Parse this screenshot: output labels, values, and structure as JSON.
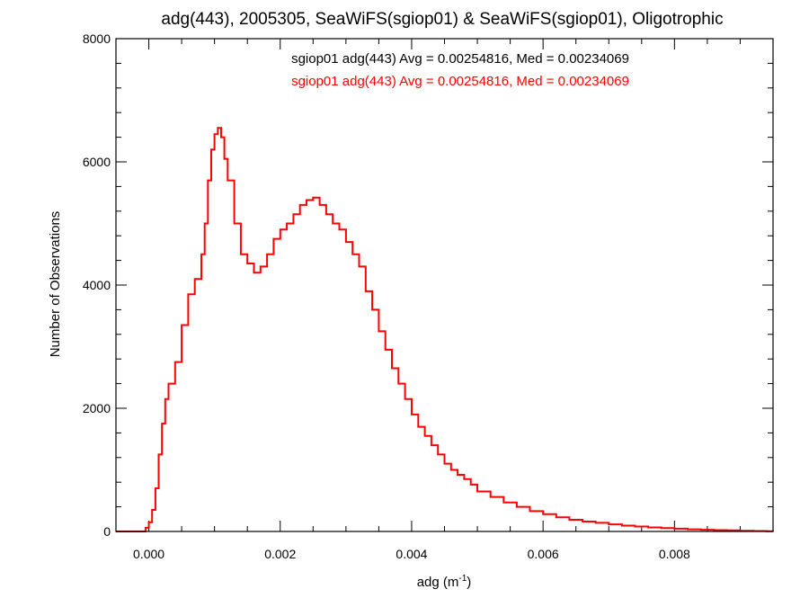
{
  "chart_data": {
    "type": "line",
    "title": "adg(443), 2005305, SeaWiFS(sgiop01) & SeaWiFS(sgiop01), Oligotrophic",
    "xlabel": "adg (m",
    "xlabel_sup": "-1",
    "xlabel_close": ")",
    "ylabel": "Number of Observations",
    "xlim": [
      -0.0005,
      0.0095
    ],
    "ylim": [
      0,
      8000
    ],
    "x_ticks": [
      0.0,
      0.002,
      0.004,
      0.006,
      0.008
    ],
    "x_tick_labels": [
      "0.000",
      "0.002",
      "0.004",
      "0.006",
      "0.008"
    ],
    "y_ticks": [
      0,
      2000,
      4000,
      6000,
      8000
    ],
    "y_tick_labels": [
      "0",
      "2000",
      "4000",
      "6000",
      "8000"
    ],
    "grid": false,
    "annotations": [
      {
        "text": "sgiop01 adg(443) Avg = 0.00254816, Med = 0.00234069",
        "color": "#000000"
      },
      {
        "text": "sgiop01 adg(443) Avg = 0.00254816, Med = 0.00234069",
        "color": "#ff0000"
      }
    ],
    "series": [
      {
        "color": "#ff0000",
        "x": [
          -0.0005,
          -0.0001,
          -5e-05,
          0.0,
          5e-05,
          0.0001,
          0.00015,
          0.0002,
          0.00025,
          0.0003,
          0.0004,
          0.0005,
          0.0006,
          0.0007,
          0.0008,
          0.00085,
          0.0009,
          0.00095,
          0.001,
          0.00105,
          0.0011,
          0.00115,
          0.0012,
          0.0013,
          0.0014,
          0.0015,
          0.0016,
          0.0017,
          0.0018,
          0.0019,
          0.002,
          0.0021,
          0.0022,
          0.0023,
          0.0024,
          0.0025,
          0.0026,
          0.0027,
          0.0028,
          0.0029,
          0.003,
          0.0031,
          0.0032,
          0.0033,
          0.0034,
          0.0035,
          0.0036,
          0.0037,
          0.0038,
          0.0039,
          0.004,
          0.0041,
          0.0042,
          0.0043,
          0.0044,
          0.0045,
          0.0046,
          0.0047,
          0.0048,
          0.0049,
          0.005,
          0.0052,
          0.0054,
          0.0056,
          0.0058,
          0.006,
          0.0062,
          0.0064,
          0.0066,
          0.0068,
          0.007,
          0.0072,
          0.0074,
          0.0076,
          0.0078,
          0.008,
          0.0082,
          0.0084,
          0.0086,
          0.0088,
          0.009,
          0.0092,
          0.0094,
          0.0095
        ],
        "values": [
          0,
          0,
          60,
          150,
          350,
          700,
          1250,
          1750,
          2150,
          2400,
          2750,
          3350,
          3850,
          4100,
          4500,
          5000,
          5700,
          6200,
          6450,
          6550,
          6400,
          6050,
          5700,
          5000,
          4500,
          4350,
          4200,
          4300,
          4500,
          4750,
          4900,
          5000,
          5150,
          5300,
          5380,
          5420,
          5300,
          5150,
          5000,
          4900,
          4700,
          4500,
          4300,
          3900,
          3600,
          3250,
          2950,
          2650,
          2400,
          2150,
          1900,
          1700,
          1550,
          1400,
          1250,
          1100,
          1000,
          920,
          850,
          760,
          650,
          560,
          470,
          400,
          330,
          280,
          230,
          190,
          160,
          140,
          115,
          95,
          80,
          65,
          55,
          45,
          35,
          28,
          22,
          17,
          12,
          8,
          5,
          3
        ]
      }
    ]
  }
}
